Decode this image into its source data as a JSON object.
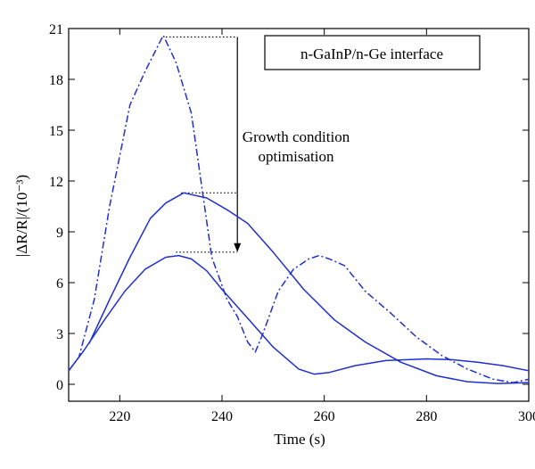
{
  "chart_data": {
    "type": "line",
    "title": "",
    "xlabel": "Time (s)",
    "ylabel": "|ΔR/R|/(10⁻³)",
    "xlim": [
      210,
      300
    ],
    "ylim": [
      -1,
      21
    ],
    "x_ticks": [
      220,
      240,
      260,
      280,
      300
    ],
    "y_ticks": [
      0,
      3,
      6,
      9,
      12,
      15,
      18,
      21
    ],
    "grid": false,
    "color": "#1f2fd0",
    "legend_box_text": "n-GaInP/n-Ge interface",
    "annotation": {
      "text_line1": "Growth condition",
      "text_line2": "optimisation",
      "arrow": {
        "x": 243,
        "from": 20.5,
        "to": 7.8
      },
      "guide_lines": [
        {
          "y": 20.5,
          "x_from": 229,
          "x_to": 243
        },
        {
          "y": 11.3,
          "x_from": 232,
          "x_to": 243
        },
        {
          "y": 7.8,
          "x_from": 231,
          "x_to": 243
        }
      ]
    },
    "series": [
      {
        "style": "dash-dot",
        "x": [
          210,
          212,
          215,
          218,
          222,
          225,
          228.5,
          231,
          234,
          238,
          241,
          243,
          245,
          246.5,
          248,
          251,
          254,
          257,
          259,
          261,
          264,
          268,
          273,
          278,
          283,
          288,
          293,
          297,
          300
        ],
        "y": [
          0.8,
          1.6,
          5.0,
          10.5,
          16.5,
          18.5,
          20.6,
          19.0,
          16.0,
          7.5,
          5.0,
          4.0,
          2.5,
          1.9,
          3.0,
          5.5,
          6.8,
          7.4,
          7.6,
          7.4,
          7.0,
          5.5,
          4.2,
          2.8,
          1.7,
          0.9,
          0.3,
          0.1,
          0.3
        ]
      },
      {
        "style": "solid",
        "x": [
          214,
          218,
          222,
          226,
          229,
          232.5,
          237,
          241,
          245,
          250,
          256,
          262,
          268,
          275,
          282,
          288,
          294,
          300
        ],
        "y": [
          2.4,
          5.0,
          7.5,
          9.8,
          10.7,
          11.3,
          11.0,
          10.3,
          9.5,
          7.8,
          5.6,
          3.8,
          2.5,
          1.3,
          0.5,
          0.15,
          0.05,
          0.1
        ]
      },
      {
        "style": "solid",
        "x": [
          210,
          213,
          217,
          221,
          225,
          229,
          231.5,
          234,
          237,
          240,
          245,
          250,
          255,
          258,
          261,
          266,
          272,
          280,
          285,
          290,
          295,
          300
        ],
        "y": [
          0.8,
          2.0,
          3.8,
          5.5,
          6.8,
          7.5,
          7.6,
          7.4,
          6.7,
          5.6,
          3.9,
          2.2,
          0.9,
          0.6,
          0.7,
          1.1,
          1.4,
          1.5,
          1.45,
          1.3,
          1.1,
          0.8
        ]
      }
    ]
  }
}
